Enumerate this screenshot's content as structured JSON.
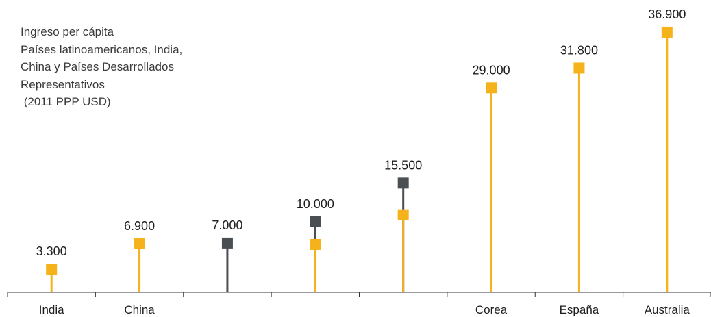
{
  "colors": {
    "primary": "#F5B21B",
    "secondary": "#4A4F54",
    "axis": "#333333"
  },
  "title_lines": [
    "Ingreso per cápita",
    "Países latinoamericanos, India,",
    "China y Países Desarrollados",
    "Representativos",
    " (2011 PPP USD)"
  ],
  "chart_data": {
    "type": "lollipop",
    "title": "Ingreso per cápita Países latinoamericanos, India, China y Países Desarrollados Representativos (2011 PPP USD)",
    "xlabel": "",
    "ylabel": "",
    "ylim": [
      0,
      40000
    ],
    "grid": false,
    "categories": [
      "India",
      "China",
      "",
      "",
      "",
      "Corea",
      "España",
      "Australia"
    ],
    "series": [
      {
        "color": "#F5B21B",
        "values": [
          3300,
          6900,
          null,
          6800,
          11000,
          29000,
          31800,
          36900
        ]
      },
      {
        "color": "#4A4F54",
        "values": [
          null,
          null,
          7000,
          10000,
          15500,
          null,
          null,
          null
        ]
      }
    ],
    "data_labels": [
      "3.300",
      "6.900",
      "7.000",
      "10.000",
      "15.500",
      "29.000",
      "31.800",
      "36.900"
    ]
  }
}
